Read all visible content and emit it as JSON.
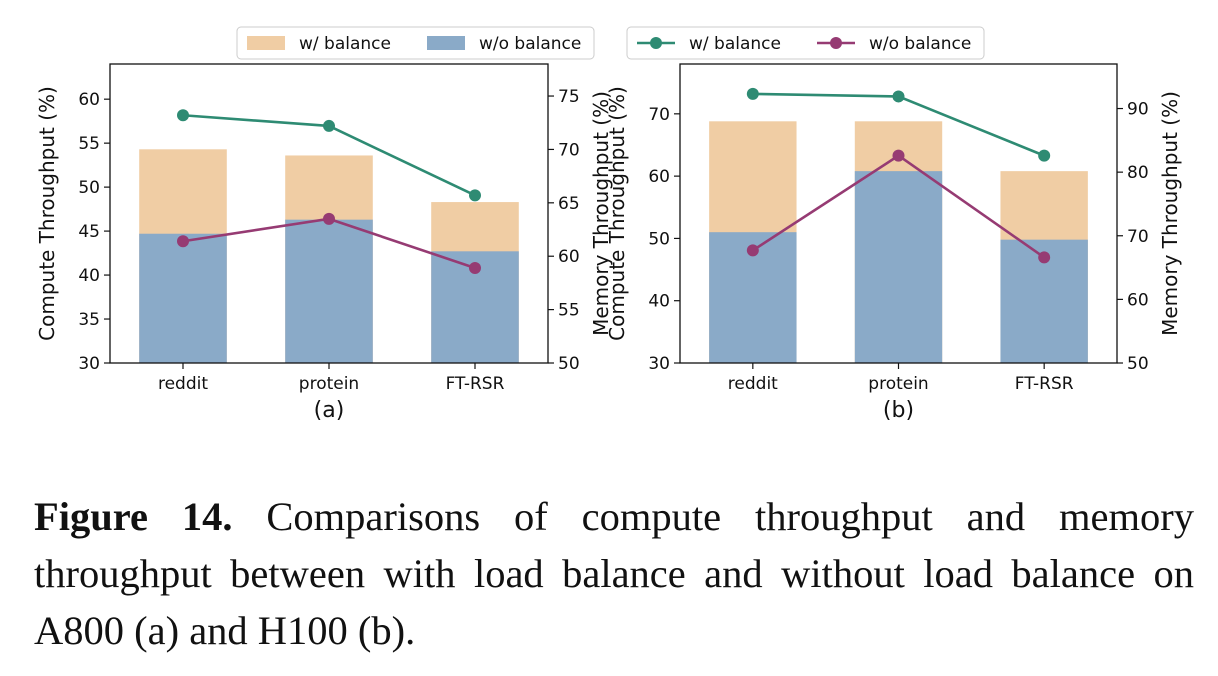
{
  "chart_data": [
    {
      "type": "bar",
      "panel_label": "(a)",
      "categories": [
        "reddit",
        "protein",
        "FT-RSR"
      ],
      "ylabel": "Compute Throughput (%)",
      "ylim": [
        30,
        64
      ],
      "yticks": [
        30,
        35,
        40,
        45,
        50,
        55,
        60
      ],
      "y2label": "Memory Throughput (%)",
      "y2lim": [
        50,
        78
      ],
      "y2ticks": [
        50,
        55,
        60,
        65,
        70,
        75
      ],
      "bar_series": [
        {
          "name": "w/ balance",
          "color": "#f0cda4",
          "values": [
            54.3,
            53.6,
            48.3
          ]
        },
        {
          "name": "w/o balance",
          "color": "#8aaac8",
          "values": [
            44.7,
            46.3,
            42.7
          ]
        }
      ],
      "line_series": [
        {
          "name": "w/ balance",
          "color": "#2e8b73",
          "axis": "right",
          "values": [
            73.2,
            72.2,
            65.7
          ]
        },
        {
          "name": "w/o balance",
          "color": "#963b73",
          "axis": "right",
          "values": [
            61.4,
            63.5,
            58.9
          ]
        }
      ],
      "grid": false,
      "legend_placement": "top-center"
    },
    {
      "type": "bar",
      "panel_label": "(b)",
      "categories": [
        "reddit",
        "protein",
        "FT-RSR"
      ],
      "ylabel": "Compute Throughput (%)",
      "ylim": [
        30,
        78
      ],
      "yticks": [
        30,
        40,
        50,
        60,
        70
      ],
      "y2label": "Memory Throughput (%)",
      "y2lim": [
        50,
        97
      ],
      "y2ticks": [
        50,
        60,
        70,
        80,
        90
      ],
      "bar_series": [
        {
          "name": "w/ balance",
          "color": "#f0cda4",
          "values": [
            68.8,
            68.8,
            60.8
          ]
        },
        {
          "name": "w/o balance",
          "color": "#8aaac8",
          "values": [
            51.0,
            60.8,
            49.8
          ]
        }
      ],
      "line_series": [
        {
          "name": "w/ balance",
          "color": "#2e8b73",
          "axis": "right",
          "values": [
            92.3,
            91.9,
            82.6
          ]
        },
        {
          "name": "w/o balance",
          "color": "#963b73",
          "axis": "right",
          "values": [
            67.7,
            82.6,
            66.6
          ]
        }
      ],
      "grid": false,
      "legend_placement": "top-center"
    }
  ],
  "caption": {
    "label": "Figure 14.",
    "text": " Comparisons of compute throughput and memory throughput between with load balance and without load balance on A800 (a) and H100 (b)."
  }
}
